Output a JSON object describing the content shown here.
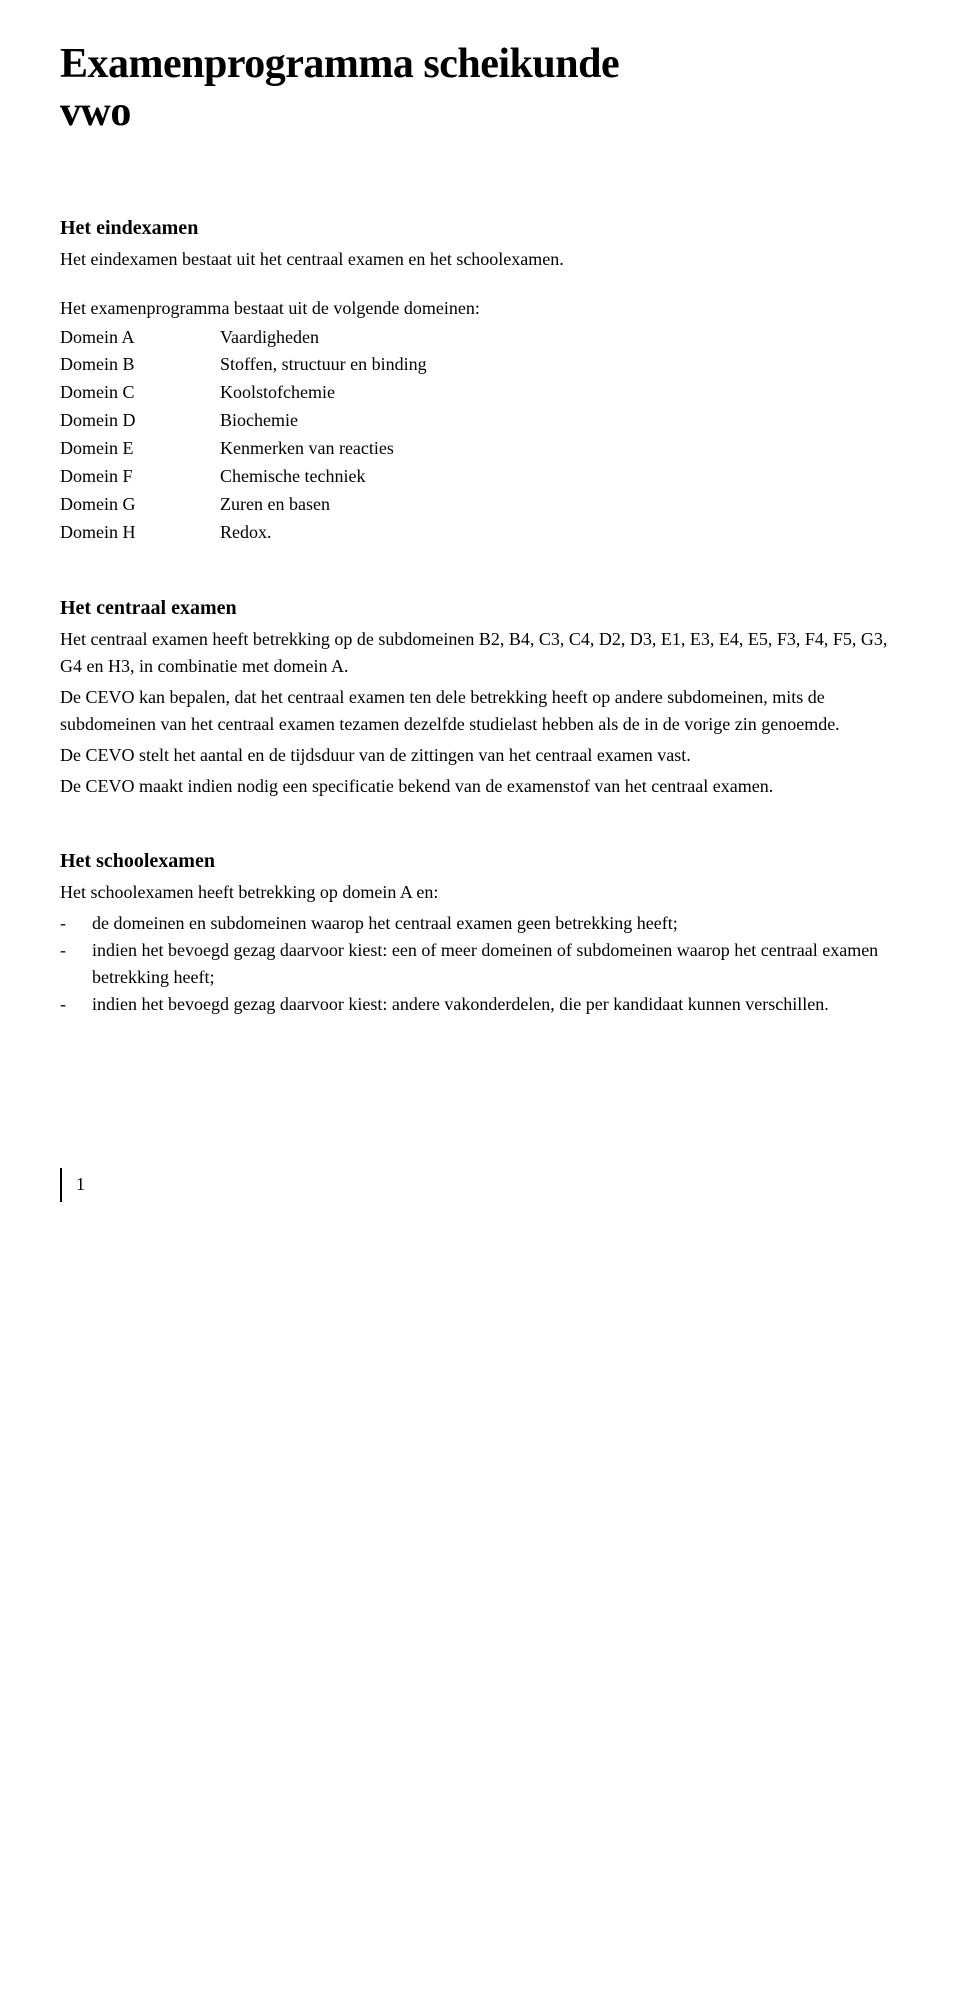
{
  "title_line1": "Examenprogramma scheikunde",
  "title_line2": "vwo",
  "section1": {
    "heading": "Het eindexamen",
    "intro": "Het eindexamen bestaat uit het centraal examen en het schoolexamen.",
    "domains_intro": "Het examenprogramma bestaat uit de volgende domeinen:",
    "domains": [
      {
        "label": "Domein A",
        "desc": "Vaardigheden"
      },
      {
        "label": "Domein B",
        "desc": "Stoffen, structuur en binding"
      },
      {
        "label": "Domein C",
        "desc": "Koolstofchemie"
      },
      {
        "label": "Domein D",
        "desc": "Biochemie"
      },
      {
        "label": "Domein E",
        "desc": "Kenmerken van reacties"
      },
      {
        "label": "Domein F",
        "desc": "Chemische techniek"
      },
      {
        "label": "Domein G",
        "desc": "Zuren en basen"
      },
      {
        "label": "Domein H",
        "desc": "Redox."
      }
    ]
  },
  "section2": {
    "heading": "Het centraal examen",
    "p1": "Het centraal examen heeft betrekking op de subdomeinen B2, B4, C3, C4, D2, D3, E1, E3, E4, E5, F3, F4, F5, G3, G4 en H3, in combinatie met domein A.",
    "p2": "De CEVO kan bepalen, dat het centraal examen ten dele betrekking heeft op andere subdomeinen, mits de subdomeinen van het centraal examen tezamen dezelfde studielast hebben als de in de vorige zin genoemde.",
    "p3": "De CEVO stelt het aantal en de tijdsduur van de zittingen van het centraal examen vast.",
    "p4": "De CEVO maakt indien nodig een specificatie bekend van de examenstof van het centraal examen."
  },
  "section3": {
    "heading": "Het schoolexamen",
    "intro": "Het schoolexamen heeft betrekking op domein A en:",
    "bullets": [
      "de domeinen en subdomeinen waarop het centraal examen geen betrekking heeft;",
      "indien het bevoegd gezag daarvoor kiest: een of meer domeinen of subdomeinen waarop het centraal examen betrekking heeft;",
      "indien het bevoegd gezag daarvoor kiest: andere vakonderdelen, die per kandidaat kunnen verschillen."
    ]
  },
  "page_number": "1",
  "colors": {
    "text": "#000000",
    "background": "#ffffff"
  }
}
